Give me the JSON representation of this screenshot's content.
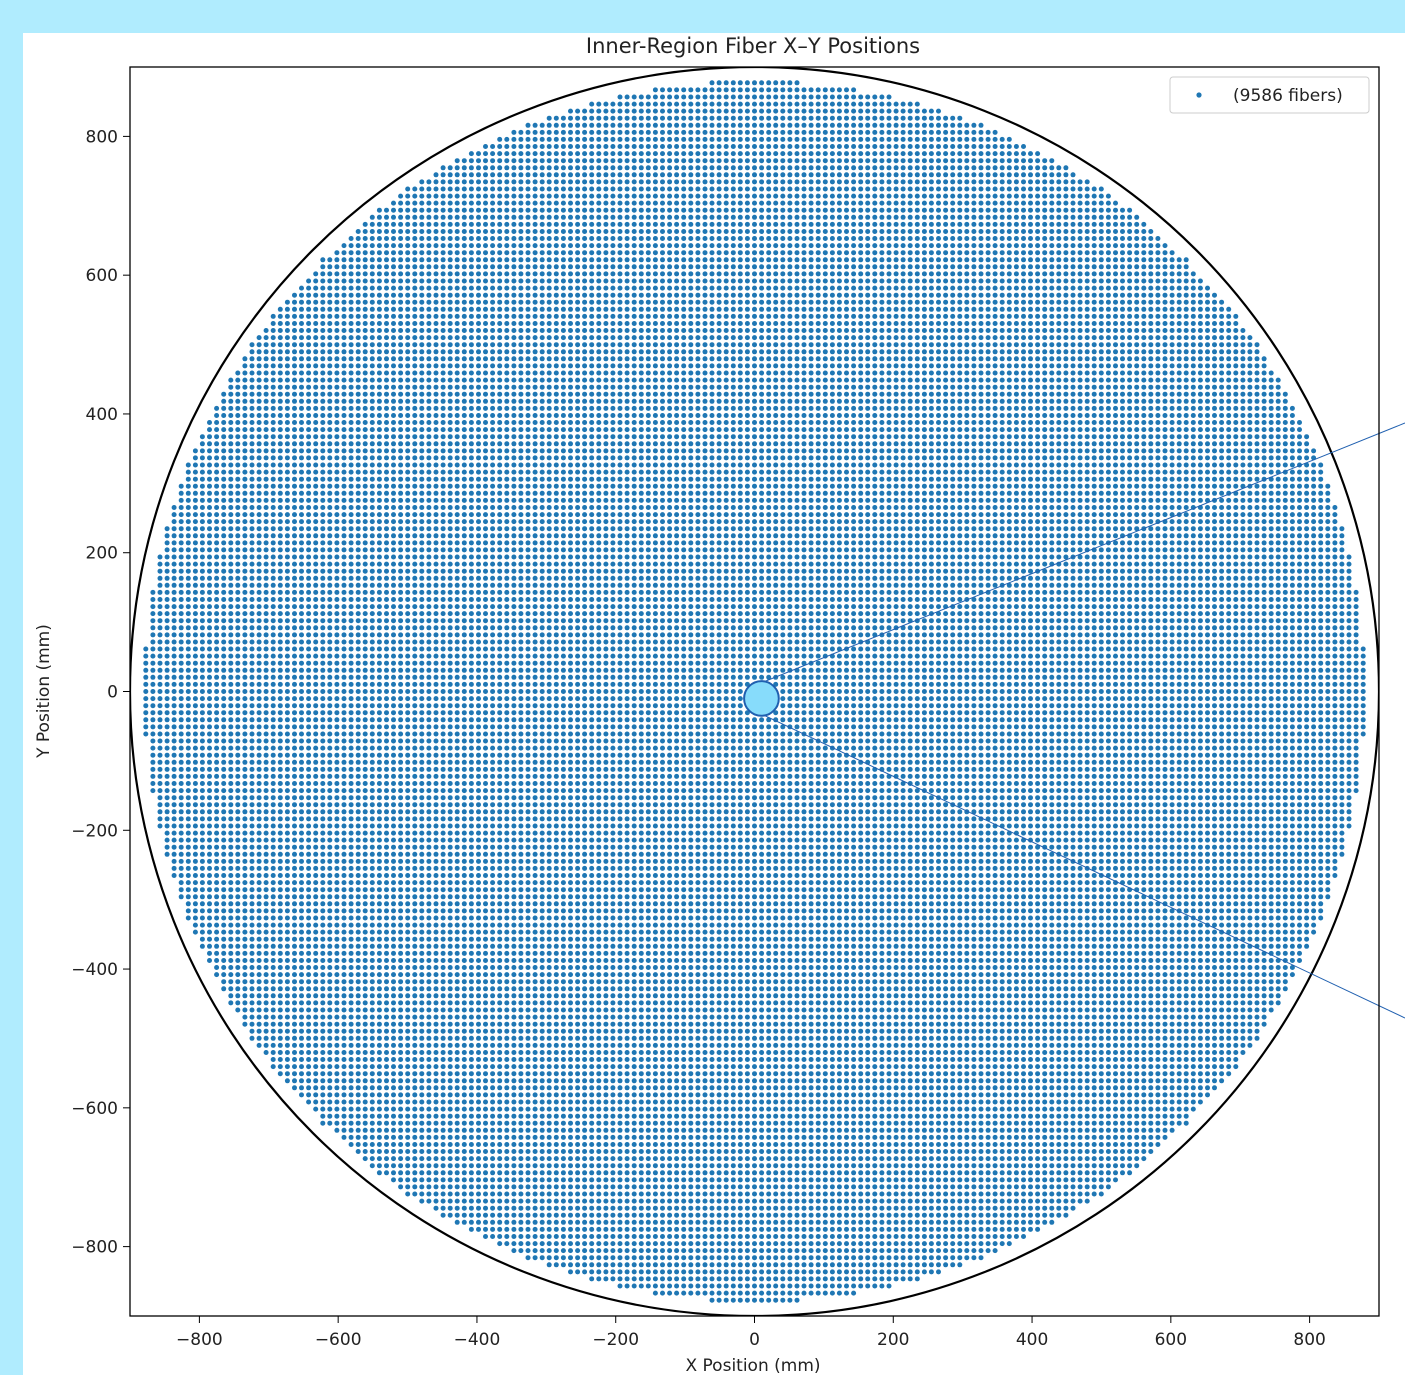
{
  "chart_data": {
    "type": "scatter",
    "title": "Inner-Region Fiber X–Y Positions",
    "xlabel": "X Position (mm)",
    "ylabel": "Y Position (mm)",
    "xlim": [
      -900,
      900
    ],
    "ylim": [
      -900,
      900
    ],
    "xticks": [
      -800,
      -600,
      -400,
      -200,
      0,
      200,
      400,
      600,
      800
    ],
    "yticks": [
      -800,
      -600,
      -400,
      -200,
      0,
      200,
      400,
      600,
      800
    ],
    "grid": false,
    "legend": {
      "position": "top-right",
      "label": "(9586 fibers)"
    },
    "series": [
      {
        "name": "(9586 fibers)",
        "count": 9586,
        "color": "#1f77b4",
        "pattern": "square grid of fibers, ~10.2 mm pitch, filling a circle of radius ~880 mm centered at (0, 0)",
        "pitch": 10.2,
        "region_radius": 880
      }
    ],
    "annotations": [
      {
        "kind": "boundary-circle",
        "center": [
          0,
          0
        ],
        "radius": 900,
        "color": "#000000"
      },
      {
        "kind": "highlight-circle",
        "center": [
          10,
          -10
        ],
        "radius": 25,
        "fill": "#87dcfb",
        "stroke": "#2060b0"
      }
    ]
  }
}
